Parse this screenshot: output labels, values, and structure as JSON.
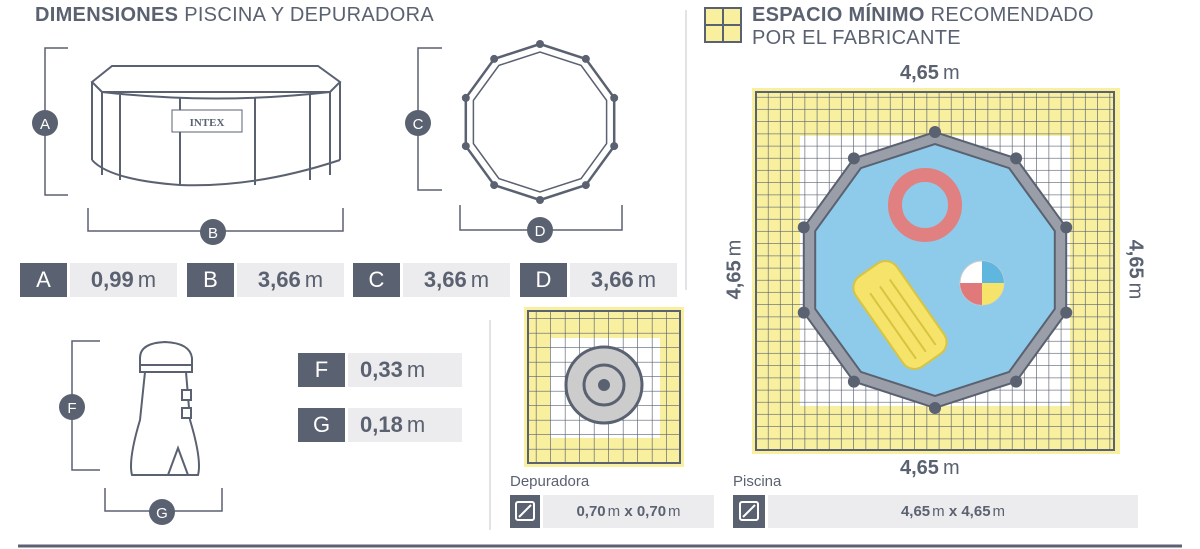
{
  "left_title": {
    "bold": "DIMENSIONES",
    "rest": "PISCINA Y DEPURADORA"
  },
  "right_title": {
    "bold": "ESPACIO MÍNIMO",
    "rest": "RECOMENDADO",
    "line2": "POR EL FABRICANTE"
  },
  "pool_brand": "INTEX",
  "markers": {
    "a": "A",
    "b": "B",
    "c": "C",
    "d": "D",
    "f": "F",
    "g": "G"
  },
  "dimensions": [
    {
      "key": "A",
      "value": "0,99",
      "unit": "m"
    },
    {
      "key": "B",
      "value": "3,66",
      "unit": "m"
    },
    {
      "key": "C",
      "value": "3,66",
      "unit": "m"
    },
    {
      "key": "D",
      "value": "3,66",
      "unit": "m"
    },
    {
      "key": "F",
      "value": "0,33",
      "unit": "m"
    },
    {
      "key": "G",
      "value": "0,18",
      "unit": "m"
    }
  ],
  "space": {
    "top": "4,65",
    "left": "4,65",
    "right": "4,65",
    "bottom": "4,65",
    "unit": "m"
  },
  "filter_space": {
    "label": "Depuradora",
    "w": "0,70",
    "h": "0,70",
    "unit": "m",
    "x": "x",
    "icon": "diagonal-resize-icon"
  },
  "pool_space": {
    "label": "Piscina",
    "w": "4,65",
    "h": "4,65",
    "unit": "m",
    "x": "x",
    "icon": "diagonal-resize-icon"
  },
  "colors": {
    "primary": "#5a6170",
    "light": "#ececee",
    "yellow": "#f8ef9f",
    "water": "#8ecbea"
  }
}
